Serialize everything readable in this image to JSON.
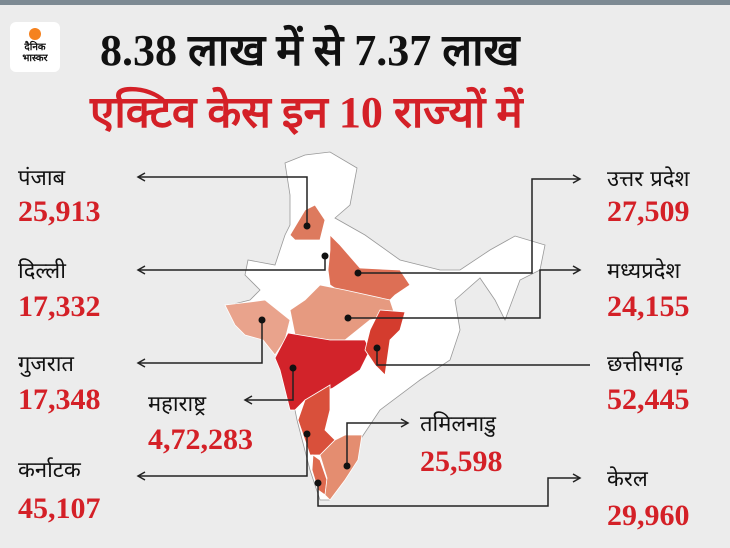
{
  "logo": {
    "line1": "दैनिक",
    "line2": "भास्कर"
  },
  "headline": {
    "line1": "8.38 लाख में से 7.37 लाख",
    "line2": "एक्टिव केस इन 10 राज्यों में"
  },
  "colors": {
    "accent": "#d42027",
    "text": "#111111",
    "background": "#ececec"
  },
  "states": [
    {
      "name": "पंजाब",
      "cases": "25,913",
      "fill": "#dd7a5e"
    },
    {
      "name": "दिल्ली",
      "cases": "17,332",
      "fill": "#ffffff"
    },
    {
      "name": "गुजरात",
      "cases": "17,348",
      "fill": "#e9a38c"
    },
    {
      "name": "महाराष्ट्र",
      "cases": "4,72,283",
      "fill": "#d2232a"
    },
    {
      "name": "कर्नाटक",
      "cases": "45,107",
      "fill": "#d9503b"
    },
    {
      "name": "उत्तर प्रदेश",
      "cases": "27,509",
      "fill": "#dd6f55"
    },
    {
      "name": "मध्यप्रदेश",
      "cases": "24,155",
      "fill": "#e69a80"
    },
    {
      "name": "छत्तीसगढ़",
      "cases": "52,445",
      "fill": "#d43c2e"
    },
    {
      "name": "तमिलनाडु",
      "cases": "25,598",
      "fill": "#e48d70"
    },
    {
      "name": "केरल",
      "cases": "29,960",
      "fill": "#de6a4f"
    }
  ]
}
